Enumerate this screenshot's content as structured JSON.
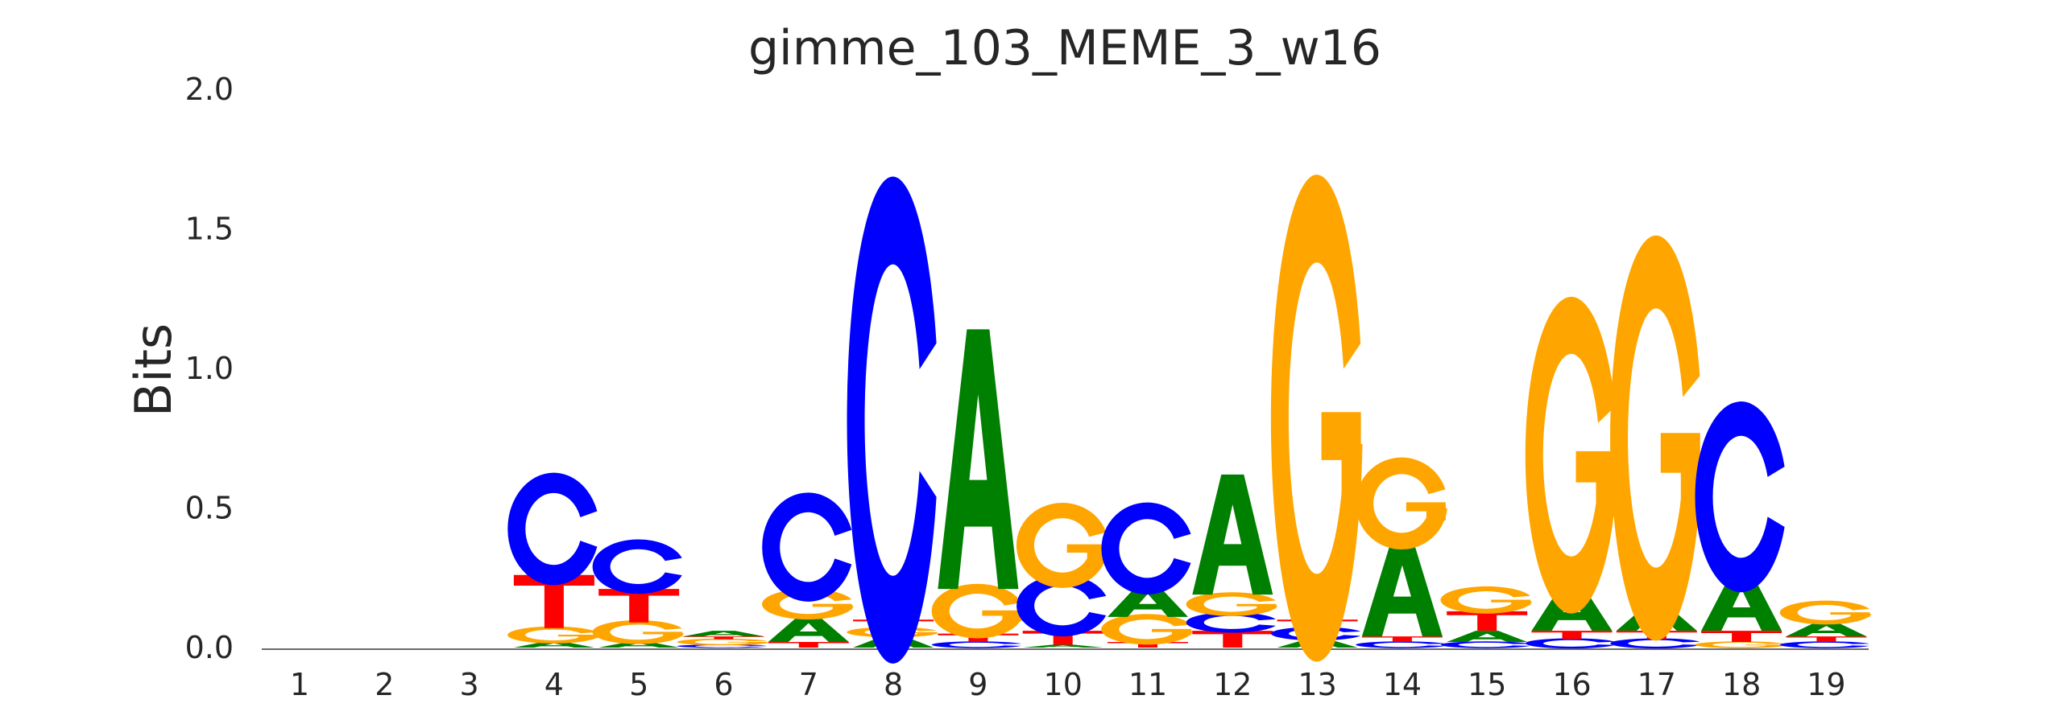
{
  "chart_data": {
    "type": "sequence_logo",
    "title": "gimme_103_MEME_3_w16",
    "ylabel": "Bits",
    "xlabel": "",
    "ylim": [
      0,
      2.0
    ],
    "yticks": [
      "0.0",
      "0.5",
      "1.0",
      "1.5",
      "2.0"
    ],
    "positions": [
      "1",
      "2",
      "3",
      "4",
      "5",
      "6",
      "7",
      "8",
      "9",
      "10",
      "11",
      "12",
      "13",
      "14",
      "15",
      "16",
      "17",
      "18",
      "19"
    ],
    "colors": {
      "A": "#008000",
      "C": "#0000ff",
      "G": "#ffa500",
      "T": "#ff0000"
    },
    "stacks": [
      [],
      [],
      [],
      [
        {
          "base": "A",
          "bits": 0.02
        },
        {
          "base": "G",
          "bits": 0.05
        },
        {
          "base": "T",
          "bits": 0.19
        },
        {
          "base": "C",
          "bits": 0.33
        }
      ],
      [
        {
          "base": "A",
          "bits": 0.02
        },
        {
          "base": "G",
          "bits": 0.07
        },
        {
          "base": "T",
          "bits": 0.12
        },
        {
          "base": "C",
          "bits": 0.16
        }
      ],
      [
        {
          "base": "C",
          "bits": 0.01
        },
        {
          "base": "G",
          "bits": 0.02
        },
        {
          "base": "T",
          "bits": 0.01
        },
        {
          "base": "A",
          "bits": 0.02
        }
      ],
      [
        {
          "base": "T",
          "bits": 0.02
        },
        {
          "base": "A",
          "bits": 0.09
        },
        {
          "base": "G",
          "bits": 0.09
        },
        {
          "base": "C",
          "bits": 0.32
        }
      ],
      [
        {
          "base": "A",
          "bits": 0.04
        },
        {
          "base": "G",
          "bits": 0.03
        },
        {
          "base": "T",
          "bits": 0.03
        },
        {
          "base": "C",
          "bits": 1.43
        }
      ],
      [
        {
          "base": "C",
          "bits": 0.02
        },
        {
          "base": "T",
          "bits": 0.03
        },
        {
          "base": "G",
          "bits": 0.16
        },
        {
          "base": "A",
          "bits": 0.93
        }
      ],
      [
        {
          "base": "A",
          "bits": 0.01
        },
        {
          "base": "T",
          "bits": 0.05
        },
        {
          "base": "C",
          "bits": 0.18
        },
        {
          "base": "G",
          "bits": 0.25
        }
      ],
      [
        {
          "base": "T",
          "bits": 0.02
        },
        {
          "base": "G",
          "bits": 0.09
        },
        {
          "base": "A",
          "bits": 0.11
        },
        {
          "base": "C",
          "bits": 0.27
        }
      ],
      [
        {
          "base": "T",
          "bits": 0.06
        },
        {
          "base": "C",
          "bits": 0.06
        },
        {
          "base": "G",
          "bits": 0.07
        },
        {
          "base": "A",
          "bits": 0.43
        }
      ],
      [
        {
          "base": "A",
          "bits": 0.03
        },
        {
          "base": "C",
          "bits": 0.04
        },
        {
          "base": "T",
          "bits": 0.03
        },
        {
          "base": "G",
          "bits": 1.43
        }
      ],
      [
        {
          "base": "C",
          "bits": 0.02
        },
        {
          "base": "T",
          "bits": 0.02
        },
        {
          "base": "A",
          "bits": 0.34
        },
        {
          "base": "G",
          "bits": 0.27
        }
      ],
      [
        {
          "base": "C",
          "bits": 0.02
        },
        {
          "base": "A",
          "bits": 0.04
        },
        {
          "base": "T",
          "bits": 0.07
        },
        {
          "base": "G",
          "bits": 0.08
        }
      ],
      [
        {
          "base": "C",
          "bits": 0.03
        },
        {
          "base": "T",
          "bits": 0.03
        },
        {
          "base": "A",
          "bits": 0.16
        },
        {
          "base": "G",
          "bits": 0.93
        }
      ],
      [
        {
          "base": "C",
          "bits": 0.03
        },
        {
          "base": "T",
          "bits": 0.03
        },
        {
          "base": "A",
          "bits": 0.09
        },
        {
          "base": "G",
          "bits": 1.19
        }
      ],
      [
        {
          "base": "G",
          "bits": 0.02
        },
        {
          "base": "T",
          "bits": 0.04
        },
        {
          "base": "A",
          "bits": 0.2
        },
        {
          "base": "C",
          "bits": 0.56
        }
      ],
      [
        {
          "base": "C",
          "bits": 0.02
        },
        {
          "base": "T",
          "bits": 0.02
        },
        {
          "base": "A",
          "bits": 0.05
        },
        {
          "base": "G",
          "bits": 0.07
        }
      ]
    ]
  }
}
